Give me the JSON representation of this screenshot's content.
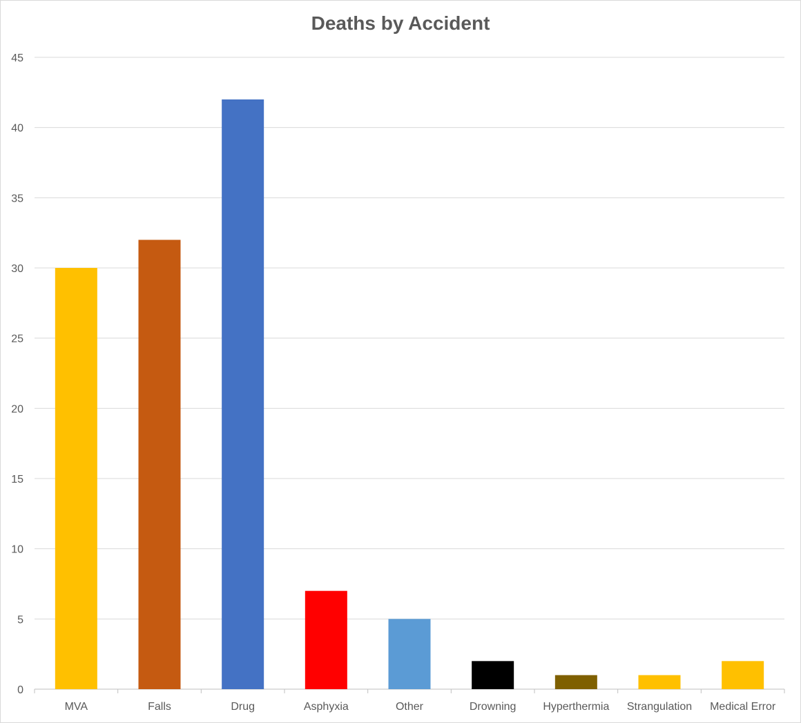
{
  "chart_data": {
    "type": "bar",
    "title": "Deaths by Accident",
    "xlabel": "",
    "ylabel": "",
    "ylim": [
      0,
      45
    ],
    "yticks": [
      0,
      5,
      10,
      15,
      20,
      25,
      30,
      35,
      40,
      45
    ],
    "grid": true,
    "legend": "none",
    "categories": [
      "MVA",
      "Falls",
      "Drug",
      "Asphyxia",
      "Other",
      "Drowning",
      "Hyperthermia",
      "Strangulation",
      "Medical Error"
    ],
    "values": [
      30,
      32,
      42,
      7,
      5,
      2,
      1,
      1,
      2
    ],
    "colors": [
      "#FFC000",
      "#C55A11",
      "#4472C4",
      "#FF0000",
      "#5B9BD5",
      "#000000",
      "#7F6000",
      "#FFC000",
      "#FFC000"
    ]
  }
}
